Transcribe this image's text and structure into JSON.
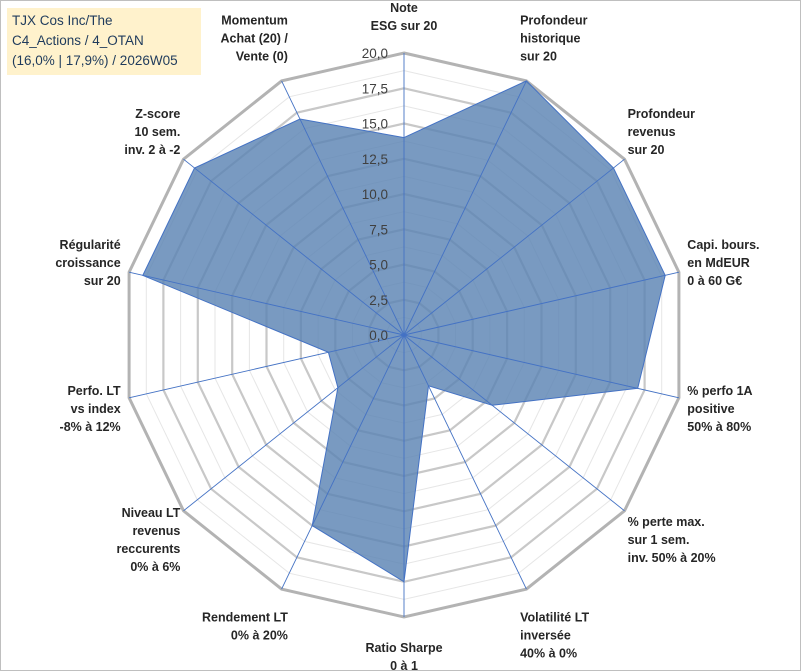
{
  "title": {
    "line1": "TJX Cos Inc/The",
    "line2": "C4_Actions / 4_OTAN",
    "line3": "(16,0% | 17,9%) / 2026W05"
  },
  "chart_data": {
    "type": "radar",
    "title": "TJX Cos Inc/The C4_Actions / 4_OTAN (16,0% | 17,9%) / 2026W05",
    "rlim": [
      0,
      20
    ],
    "ticks": [
      0,
      2.5,
      5,
      7.5,
      10,
      12.5,
      15,
      17.5,
      20
    ],
    "tick_labels": [
      "0,0",
      "2,5",
      "5,0",
      "7,5",
      "10,0",
      "12,5",
      "15,0",
      "17,5",
      "20,0"
    ],
    "grid": true,
    "series_color": "#5b84b3",
    "series_edge_color": "#4472c4",
    "grid_color": "#bfbfbf",
    "categories": [
      [
        "Note",
        "ESG sur 20"
      ],
      [
        "Profondeur",
        "historique",
        "sur 20"
      ],
      [
        "Profondeur",
        "revenus",
        "sur 20"
      ],
      [
        "Capi. bours.",
        "en MdEUR",
        "0 à 60 G€"
      ],
      [
        "% perfo 1A",
        "positive",
        "50% à 80%"
      ],
      [
        "% perte max.",
        "sur 1 sem.",
        "inv. 50% à 20%"
      ],
      [
        "Volatilité LT",
        "inversée",
        "40% à 0%"
      ],
      [
        "Ratio Sharpe",
        "0 à 1"
      ],
      [
        "Rendement LT",
        "0% à 20%"
      ],
      [
        "Niveau LT",
        "revenus",
        "reccurents",
        "0% à 6%"
      ],
      [
        "Perfo. LT",
        "vs index",
        "-8% à 12%"
      ],
      [
        "Régularité",
        "croissance",
        "sur 20"
      ],
      [
        "Z-score",
        "10 sem.",
        "inv. 2 à -2"
      ],
      [
        "Momentum",
        "Achat (20) /",
        "Vente (0)"
      ]
    ],
    "series": [
      {
        "name": "TJX Cos Inc/The",
        "values": [
          14,
          20,
          19,
          19,
          17,
          8,
          4,
          17.5,
          15,
          6,
          5.5,
          19,
          19,
          17
        ]
      }
    ]
  }
}
